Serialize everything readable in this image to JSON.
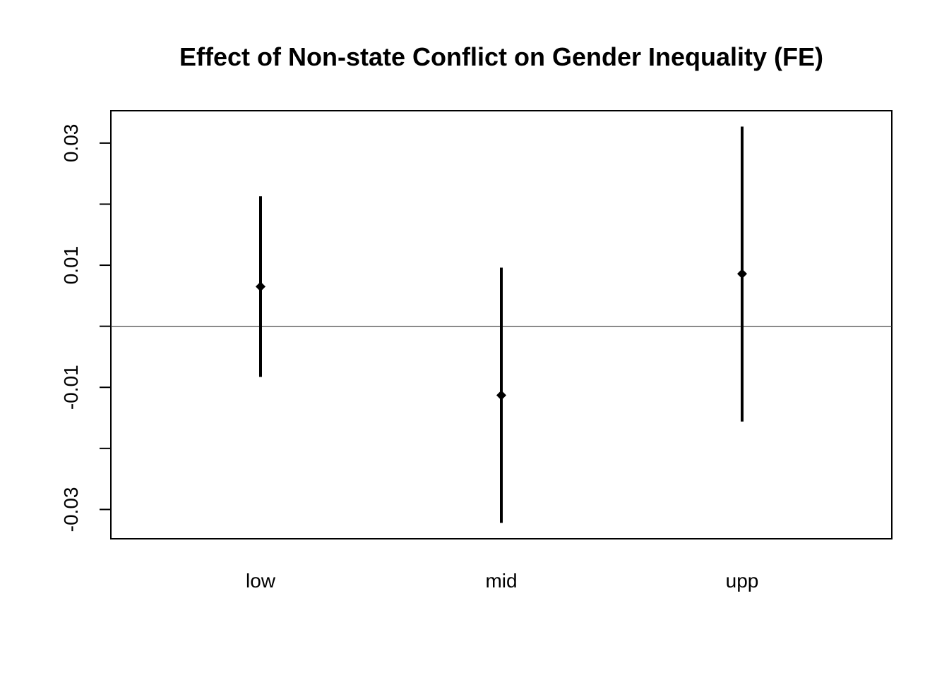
{
  "chart_data": {
    "type": "errorbar",
    "title": "Effect of Non-state Conflict on Gender Inequality (FE)",
    "xlabel": "",
    "ylabel": "",
    "categories": [
      "low",
      "mid",
      "upp"
    ],
    "estimates": [
      0.0065,
      -0.0113,
      0.0086
    ],
    "lower": [
      -0.0083,
      -0.0322,
      -0.0156
    ],
    "upper": [
      0.0213,
      0.0096,
      0.0327
    ],
    "yticks": [
      0.03,
      0.02,
      0.01,
      0.0,
      -0.01,
      -0.02,
      -0.03
    ],
    "ytick_labels": [
      "0.03",
      "",
      "0.01",
      "",
      "-0.01",
      "",
      "-0.03"
    ],
    "ylim": [
      -0.0348,
      0.0353
    ],
    "reference_line": 0,
    "grid": false,
    "colors": {
      "marks": "#000000",
      "reference_line": "#333333",
      "background": "#ffffff"
    }
  }
}
